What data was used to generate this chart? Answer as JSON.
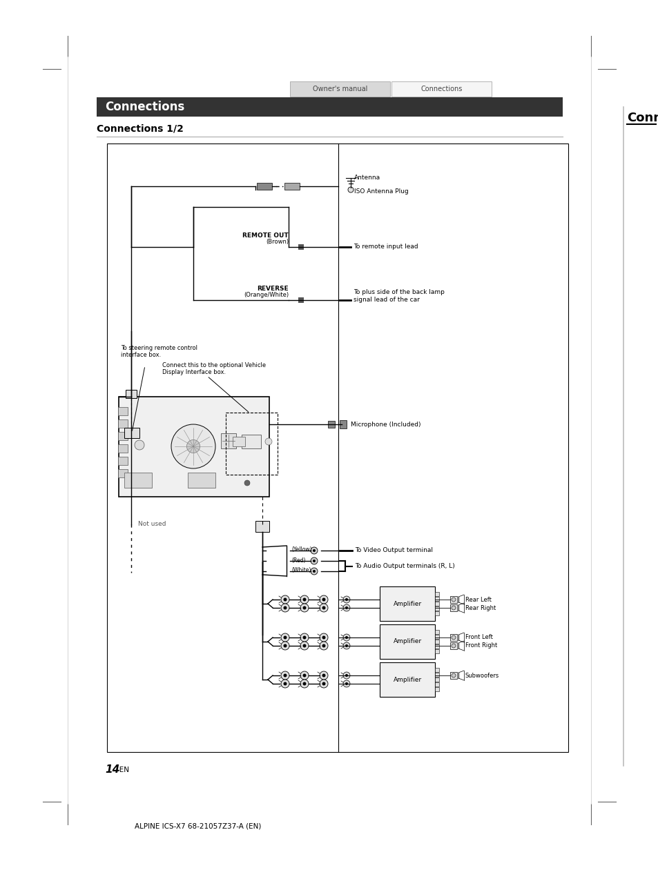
{
  "page_bg": "#ffffff",
  "header_tab1_text": "Owner's manual",
  "header_tab2_text": "Connections",
  "header_tab1_bg": "#d8d8d8",
  "header_tab2_bg": "#f5f5f5",
  "section_bar_color": "#333333",
  "section_title": "Connections",
  "section_title_color": "#ffffff",
  "subsection_title": "Connections 1/2",
  "page_number": "14",
  "page_number_suffix": "-EN",
  "footer_text": "ALPINE ICS-X7 68-21057Z37-A (EN)",
  "right_label_conne": "Conne",
  "diagram_border_color": "#000000",
  "diagram_bg": "#ffffff",
  "crop_color": "#666666"
}
